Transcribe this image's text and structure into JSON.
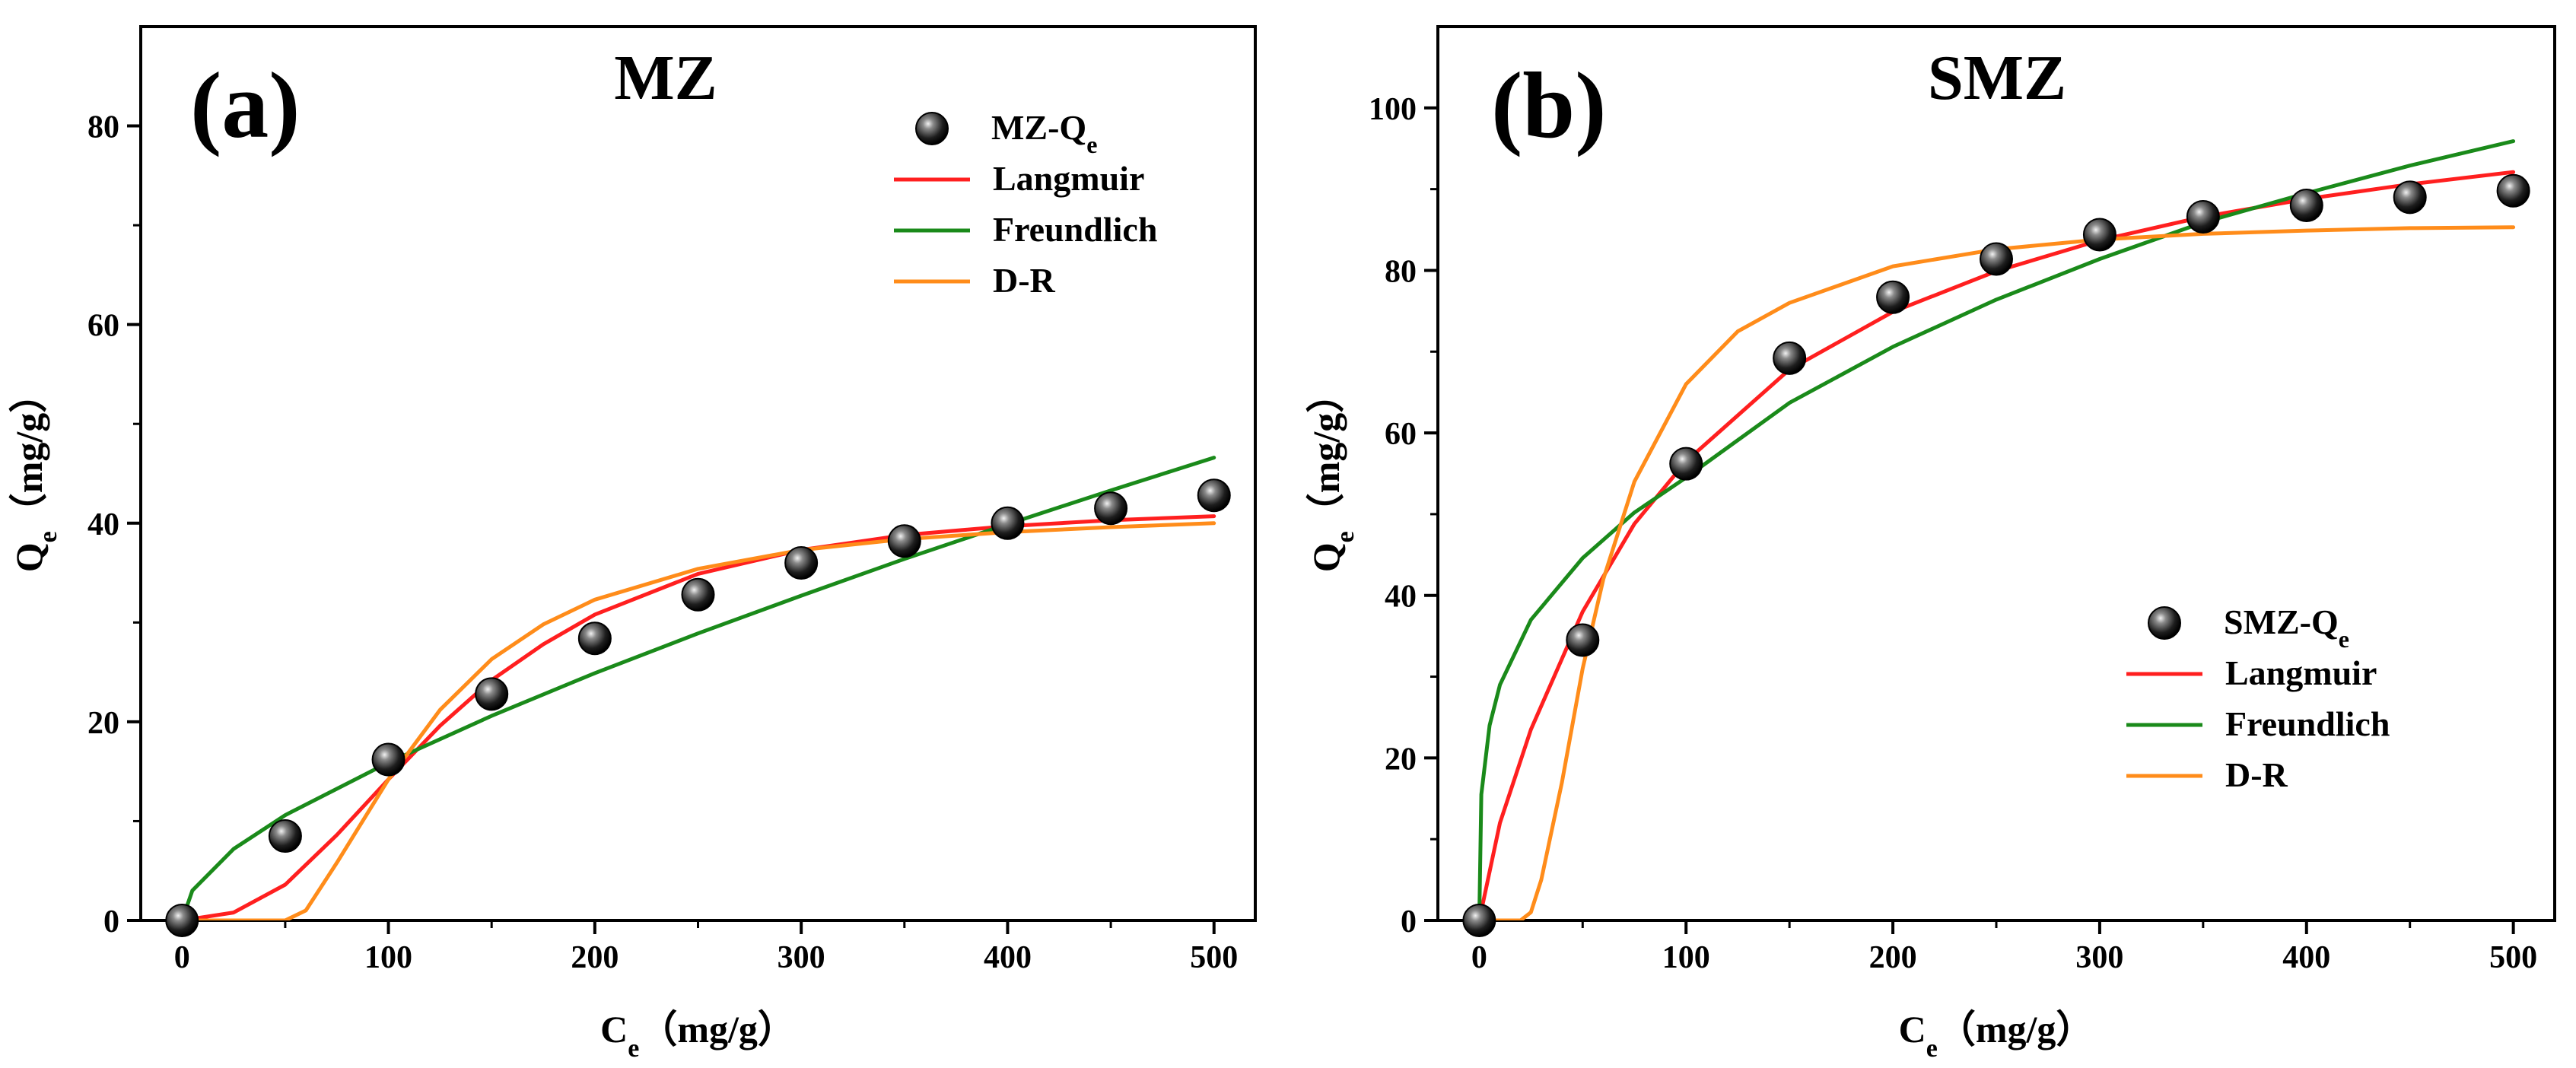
{
  "chart_data": [
    {
      "type": "scatter",
      "panel_label": "(a)",
      "title": "MZ",
      "xlabel": {
        "main": "C",
        "sub": "e",
        "unit": "（mg/g）"
      },
      "ylabel": {
        "main": "Q",
        "sub": "e",
        "unit": "（mg/g）"
      },
      "xlim": [
        -20,
        520
      ],
      "ylim": [
        0,
        90
      ],
      "xticks": [
        0,
        100,
        200,
        300,
        400,
        500
      ],
      "yticks": [
        0,
        20,
        40,
        60,
        80
      ],
      "legend_position": "top-right",
      "series": [
        {
          "name": "MZ-Q",
          "name_sub": "e",
          "kind": "points",
          "x": [
            0,
            50,
            100,
            150,
            200,
            250,
            300,
            350,
            400,
            450,
            500
          ],
          "y": [
            0,
            8.5,
            16.2,
            22.8,
            28.4,
            32.8,
            36.0,
            38.2,
            40.0,
            41.5,
            42.8
          ]
        },
        {
          "name": "Langmuir",
          "kind": "line",
          "color": "#ff1f1f",
          "x": [
            0,
            25,
            50,
            75,
            100,
            125,
            150,
            175,
            200,
            250,
            300,
            350,
            400,
            450,
            500
          ],
          "y": [
            0,
            0.8,
            3.6,
            8.6,
            14.2,
            19.6,
            24.2,
            27.8,
            30.8,
            34.9,
            37.3,
            38.8,
            39.7,
            40.3,
            40.7
          ]
        },
        {
          "name": "Freundlich",
          "kind": "line",
          "color": "#1a8a1a",
          "x": [
            0,
            5,
            25,
            50,
            100,
            150,
            200,
            250,
            300,
            350,
            400,
            450,
            500
          ],
          "y": [
            0,
            3.0,
            7.2,
            10.6,
            15.9,
            20.6,
            24.9,
            28.9,
            32.7,
            36.4,
            39.9,
            43.3,
            46.6
          ]
        },
        {
          "name": "D-R",
          "kind": "line",
          "color": "#ff8c1a",
          "x": [
            0,
            50,
            60,
            75,
            100,
            125,
            150,
            175,
            200,
            250,
            300,
            350,
            400,
            450,
            500
          ],
          "y": [
            0,
            0,
            1.0,
            5.8,
            14.2,
            21.2,
            26.3,
            29.8,
            32.3,
            35.4,
            37.3,
            38.4,
            39.1,
            39.6,
            40.0
          ]
        }
      ]
    },
    {
      "type": "scatter",
      "panel_label": "(b)",
      "title": "SMZ",
      "xlabel": {
        "main": "C",
        "sub": "e",
        "unit": "（mg/g）"
      },
      "ylabel": {
        "main": "Q",
        "sub": "e",
        "unit": "（mg/g）"
      },
      "xlim": [
        -20,
        520
      ],
      "ylim": [
        0,
        110
      ],
      "xticks": [
        0,
        100,
        200,
        300,
        400,
        500
      ],
      "yticks": [
        0,
        20,
        40,
        60,
        80,
        100
      ],
      "legend_position": "bottom-right",
      "series": [
        {
          "name": "SMZ-Q",
          "name_sub": "e",
          "kind": "points",
          "x": [
            0,
            50,
            100,
            150,
            200,
            250,
            300,
            350,
            400,
            450,
            500
          ],
          "y": [
            0,
            34.5,
            56.2,
            69.2,
            76.7,
            81.4,
            84.4,
            86.6,
            88.0,
            89.0,
            89.8
          ]
        },
        {
          "name": "Langmuir",
          "kind": "line",
          "color": "#ff1f1f",
          "x": [
            0,
            10,
            25,
            50,
            75,
            100,
            150,
            200,
            250,
            300,
            350,
            400,
            450,
            500
          ],
          "y": [
            0,
            12.0,
            23.5,
            38.0,
            48.8,
            56.5,
            67.8,
            74.9,
            79.9,
            83.7,
            86.6,
            88.8,
            90.6,
            92.1
          ]
        },
        {
          "name": "Freundlich",
          "kind": "line",
          "color": "#1a8a1a",
          "x": [
            0,
            1,
            5,
            10,
            25,
            50,
            75,
            100,
            150,
            200,
            250,
            300,
            350,
            400,
            450,
            500
          ],
          "y": [
            0,
            15.5,
            24.0,
            29.0,
            37.0,
            44.6,
            50.2,
            54.5,
            63.7,
            70.6,
            76.4,
            81.4,
            85.9,
            89.5,
            92.9,
            95.9
          ]
        },
        {
          "name": "D-R",
          "kind": "line",
          "color": "#ff8c1a",
          "x": [
            0,
            20,
            25,
            30,
            40,
            50,
            60,
            75,
            100,
            125,
            150,
            200,
            250,
            300,
            350,
            400,
            450,
            500
          ],
          "y": [
            0,
            0,
            1.0,
            5.0,
            17.0,
            31.0,
            42.0,
            54.0,
            66.0,
            72.5,
            76.0,
            80.5,
            82.6,
            83.8,
            84.5,
            84.9,
            85.2,
            85.3
          ]
        }
      ]
    }
  ]
}
